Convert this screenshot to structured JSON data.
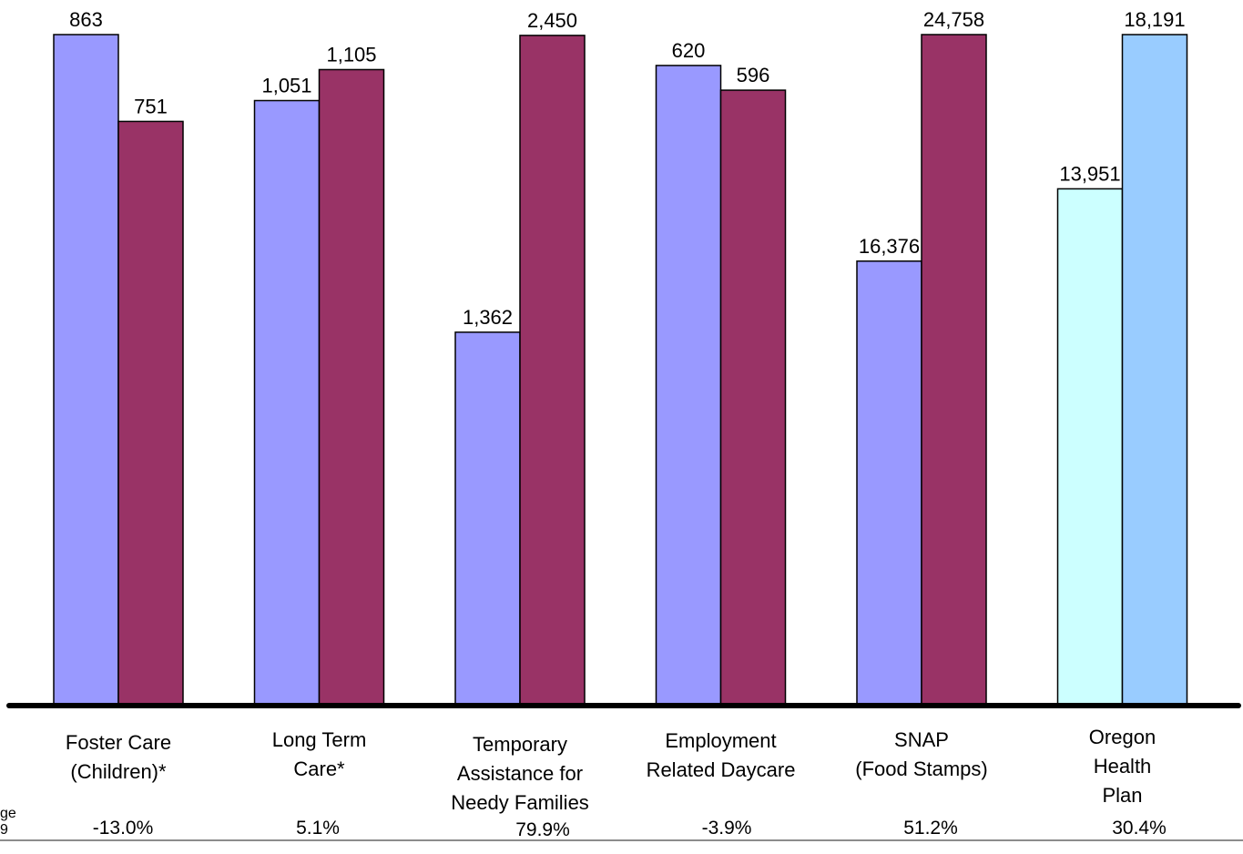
{
  "chart_data": {
    "type": "bar",
    "title": "",
    "xlabel": "",
    "ylabel": "",
    "categories": [
      "Foster Care\n(Children)*",
      "Long Term\nCare*",
      "Temporary\nAssistance for\nNeedy Families",
      "Employment\nRelated Daycare",
      "SNAP\n(Food Stamps)",
      "Oregon Health\nPlan"
    ],
    "percent_change": [
      "-13.0%",
      "5.1%",
      "79.9%",
      "-3.9%",
      "51.2%",
      "30.4%"
    ],
    "pairs": [
      {
        "first": 863,
        "second": 751,
        "first_label": "863",
        "second_label": "751",
        "ymax": 863
      },
      {
        "first": 1051,
        "second": 1105,
        "first_label": "1,051",
        "second_label": "1,105",
        "ymax": 1166
      },
      {
        "first": 1362,
        "second": 2450,
        "first_label": "1,362",
        "second_label": "2,450",
        "ymax": 2453
      },
      {
        "first": 620,
        "second": 596,
        "first_label": "620",
        "second_label": "596",
        "ymax": 650
      },
      {
        "first": 16376,
        "second": 24758,
        "first_label": "16,376",
        "second_label": "24,758",
        "ymax": 24758
      },
      {
        "first": 13951,
        "second": 18191,
        "first_label": "13,951",
        "second_label": "18,191",
        "ymax": 18130
      }
    ],
    "colors": {
      "first": "#9999ff",
      "second": "#993366",
      "ohp_first": "#ccffff",
      "ohp_second": "#99ccff"
    },
    "grid": false,
    "legend": "none"
  },
  "left_edge_text": [
    "ge",
    "9"
  ]
}
